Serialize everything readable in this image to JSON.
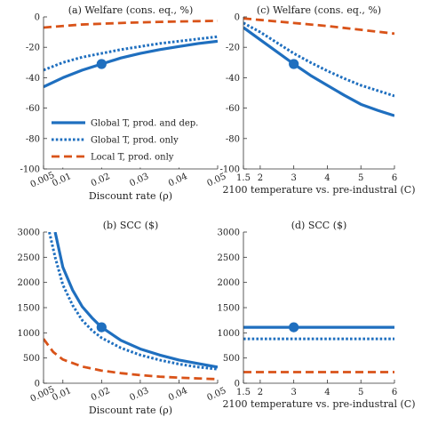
{
  "colors": {
    "blue": "#1f6fbf",
    "orange": "#d95319",
    "axis": "#333333",
    "marker": "#1f6fbf"
  },
  "chart_data": [
    {
      "id": "a",
      "type": "line",
      "title": "(a) Welfare (cons. eq., %)",
      "xlabel": "Discount rate (ρ)",
      "ylabel": "",
      "xlim": [
        0.005,
        0.05
      ],
      "ylim": [
        -100,
        0
      ],
      "xticks": [
        0.005,
        0.01,
        0.02,
        0.03,
        0.04,
        0.05
      ],
      "xtick_labels": [
        "0.005",
        "0.01",
        "0.02",
        "0.03",
        "0.04",
        "0.05"
      ],
      "yticks": [
        0,
        -20,
        -40,
        -60,
        -80,
        -100
      ],
      "ytick_labels": [
        "0",
        "-20",
        "-40",
        "-60",
        "-80",
        "-100"
      ],
      "grid": false,
      "legend_position": "bottom-left",
      "series": [
        {
          "name": "Global T, prod. and dep.",
          "style": "solid",
          "color": "blue",
          "x": [
            0.005,
            0.01,
            0.015,
            0.02,
            0.025,
            0.03,
            0.035,
            0.04,
            0.045,
            0.05
          ],
          "y": [
            -46,
            -40,
            -35,
            -31,
            -27,
            -24,
            -21.5,
            -19.5,
            -17.5,
            -16
          ]
        },
        {
          "name": "Global T, prod. only",
          "style": "dotted",
          "color": "blue",
          "x": [
            0.005,
            0.01,
            0.015,
            0.02,
            0.025,
            0.03,
            0.035,
            0.04,
            0.045,
            0.05
          ],
          "y": [
            -35,
            -30,
            -26.5,
            -24,
            -21.5,
            -19.5,
            -17.5,
            -16,
            -14.5,
            -13
          ]
        },
        {
          "name": "Local T, prod. only",
          "style": "dashed",
          "color": "orange",
          "x": [
            0.005,
            0.01,
            0.015,
            0.02,
            0.025,
            0.03,
            0.035,
            0.04,
            0.045,
            0.05
          ],
          "y": [
            -7,
            -6,
            -5,
            -4.5,
            -4,
            -3.6,
            -3.3,
            -3,
            -2.8,
            -2.6
          ]
        }
      ],
      "markers": [
        {
          "x": 0.02,
          "y": -31
        }
      ]
    },
    {
      "id": "c",
      "type": "line",
      "title": "(c) Welfare (cons. eq., %)",
      "xlabel": "2100 temperature vs. pre-industral (C)",
      "ylabel": "",
      "xlim": [
        1.5,
        6
      ],
      "ylim": [
        -100,
        0
      ],
      "xticks": [
        1.5,
        2,
        3,
        4,
        5,
        6
      ],
      "xtick_labels": [
        "1.5",
        "2",
        "3",
        "4",
        "5",
        "6"
      ],
      "yticks": [
        0,
        -20,
        -40,
        -60,
        -80,
        -100
      ],
      "ytick_labels": [
        "0",
        "-20",
        "-40",
        "-60",
        "-80",
        "-100"
      ],
      "grid": false,
      "series": [
        {
          "name": "Global T, prod. and dep.",
          "style": "solid",
          "color": "blue",
          "x": [
            1.5,
            2,
            2.5,
            3,
            3.5,
            4,
            4.5,
            5,
            5.5,
            6
          ],
          "y": [
            -7,
            -15,
            -23,
            -31,
            -38.5,
            -45,
            -51.5,
            -57.5,
            -61.5,
            -65
          ]
        },
        {
          "name": "Global T, prod. only",
          "style": "dotted",
          "color": "blue",
          "x": [
            1.5,
            2,
            2.5,
            3,
            3.5,
            4,
            4.5,
            5,
            5.5,
            6
          ],
          "y": [
            -4,
            -10,
            -17,
            -24,
            -30,
            -35.5,
            -40.5,
            -45,
            -48.5,
            -52
          ]
        },
        {
          "name": "Local T, prod. only",
          "style": "dashed",
          "color": "orange",
          "x": [
            1.5,
            2,
            3,
            4,
            5,
            6
          ],
          "y": [
            -1,
            -2,
            -4,
            -6,
            -8.5,
            -11
          ]
        }
      ],
      "markers": [
        {
          "x": 3,
          "y": -31
        }
      ]
    },
    {
      "id": "b",
      "type": "line",
      "title": "(b) SCC ($)",
      "xlabel": "Discount rate (ρ)",
      "ylabel": "",
      "xlim": [
        0.005,
        0.05
      ],
      "ylim": [
        0,
        3000
      ],
      "xticks": [
        0.005,
        0.01,
        0.02,
        0.03,
        0.04,
        0.05
      ],
      "xtick_labels": [
        "0.005",
        "0.01",
        "0.02",
        "0.03",
        "0.04",
        "0.05"
      ],
      "yticks": [
        0,
        500,
        1000,
        1500,
        2000,
        2500,
        3000
      ],
      "ytick_labels": [
        "0",
        "500",
        "1000",
        "1500",
        "2000",
        "2500",
        "3000"
      ],
      "grid": false,
      "series": [
        {
          "name": "Global T, prod. and dep.",
          "style": "solid",
          "color": "blue",
          "x": [
            0.008,
            0.01,
            0.0125,
            0.015,
            0.0175,
            0.02,
            0.025,
            0.03,
            0.035,
            0.04,
            0.045,
            0.05
          ],
          "y": [
            3000,
            2300,
            1850,
            1520,
            1300,
            1110,
            850,
            680,
            560,
            460,
            390,
            320
          ]
        },
        {
          "name": "Global T, prod. only",
          "style": "dotted",
          "color": "blue",
          "x": [
            0.0065,
            0.008,
            0.01,
            0.0125,
            0.015,
            0.0175,
            0.02,
            0.025,
            0.03,
            0.035,
            0.04,
            0.045,
            0.05
          ],
          "y": [
            3000,
            2500,
            1950,
            1550,
            1250,
            1050,
            900,
            700,
            560,
            460,
            380,
            320,
            280
          ]
        },
        {
          "name": "Local T, prod. only",
          "style": "dashed",
          "color": "orange",
          "x": [
            0.005,
            0.0075,
            0.01,
            0.015,
            0.02,
            0.025,
            0.03,
            0.035,
            0.04,
            0.045,
            0.05
          ],
          "y": [
            880,
            620,
            470,
            330,
            250,
            200,
            160,
            130,
            110,
            95,
            80
          ]
        }
      ],
      "markers": [
        {
          "x": 0.02,
          "y": 1110
        }
      ]
    },
    {
      "id": "d",
      "type": "line",
      "title": "(d) SCC ($)",
      "xlabel": "2100 temperature vs. pre-industral (C)",
      "ylabel": "",
      "xlim": [
        1.5,
        6
      ],
      "ylim": [
        0,
        3000
      ],
      "xticks": [
        1.5,
        2,
        3,
        4,
        5,
        6
      ],
      "xtick_labels": [
        "1.5",
        "2",
        "3",
        "4",
        "5",
        "6"
      ],
      "yticks": [
        0,
        500,
        1000,
        1500,
        2000,
        2500,
        3000
      ],
      "ytick_labels": [
        "0",
        "500",
        "1000",
        "1500",
        "2000",
        "2500",
        "3000"
      ],
      "grid": false,
      "series": [
        {
          "name": "Global T, prod. and dep.",
          "style": "solid",
          "color": "blue",
          "x": [
            1.5,
            6
          ],
          "y": [
            1110,
            1110
          ]
        },
        {
          "name": "Global T, prod. only",
          "style": "dotted",
          "color": "blue",
          "x": [
            1.5,
            6
          ],
          "y": [
            880,
            880
          ]
        },
        {
          "name": "Local T, prod. only",
          "style": "dashed",
          "color": "orange",
          "x": [
            1.5,
            6
          ],
          "y": [
            220,
            220
          ]
        }
      ],
      "markers": [
        {
          "x": 3,
          "y": 1110
        }
      ]
    }
  ],
  "legend": {
    "entries": [
      {
        "label": "Global T, prod. and dep.",
        "style": "solid",
        "color": "blue"
      },
      {
        "label": "Global T, prod. only",
        "style": "dotted",
        "color": "blue"
      },
      {
        "label": "Local T, prod. only",
        "style": "dashed",
        "color": "orange"
      }
    ]
  }
}
